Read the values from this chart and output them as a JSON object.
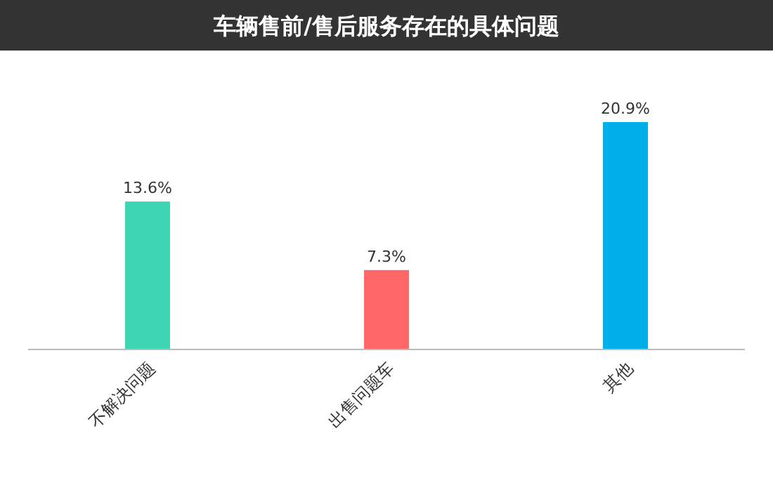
{
  "chart_data": {
    "type": "bar",
    "title": "车辆售前/售后服务存在的具体问题",
    "categories": [
      "不解决问题",
      "出售问题车",
      "其他"
    ],
    "values": [
      13.6,
      7.3,
      20.9
    ],
    "colors": [
      "#3dd6b5",
      "#ff6666",
      "#00aee8"
    ],
    "value_labels": [
      "13.6%",
      "7.3%",
      "20.9%"
    ]
  }
}
